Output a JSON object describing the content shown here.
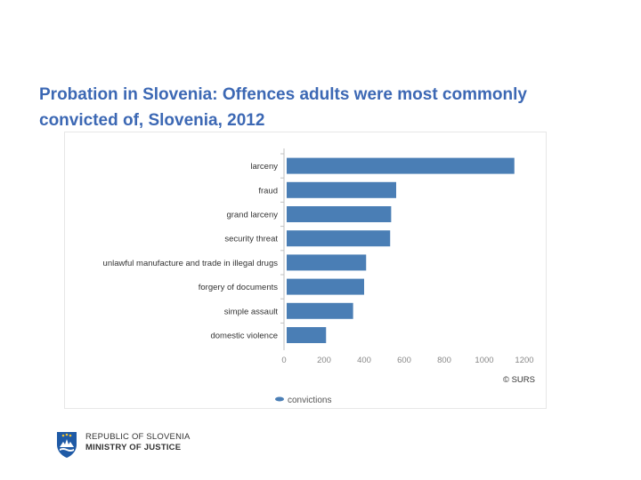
{
  "slide": {
    "title": "Probation in Slovenia: Offences adults were most commonly convicted of, Slovenia, 2012"
  },
  "footer": {
    "line1": "REPUBLIC OF SLOVENIA",
    "line2": "MINISTRY OF JUSTICE"
  },
  "colors": {
    "bar": "#4a7eb5",
    "title": "#3c68b4"
  },
  "chart_data": {
    "type": "bar",
    "orientation": "horizontal",
    "categories": [
      "larceny",
      "fraud",
      "grand larceny",
      "security threat",
      "unlawful manufacture and trade in illegal drugs",
      "forgery of documents",
      "simple assault",
      "domestic violence"
    ],
    "series": [
      {
        "name": "convictions",
        "values": [
          1150,
          560,
          535,
          530,
          410,
          400,
          345,
          210
        ]
      }
    ],
    "xlim": [
      0,
      1200
    ],
    "xticks": [
      "0",
      "200",
      "400",
      "600",
      "800",
      "1000",
      "1200"
    ],
    "credit": "© SURS",
    "legend_position": "bottom",
    "grid": false
  }
}
